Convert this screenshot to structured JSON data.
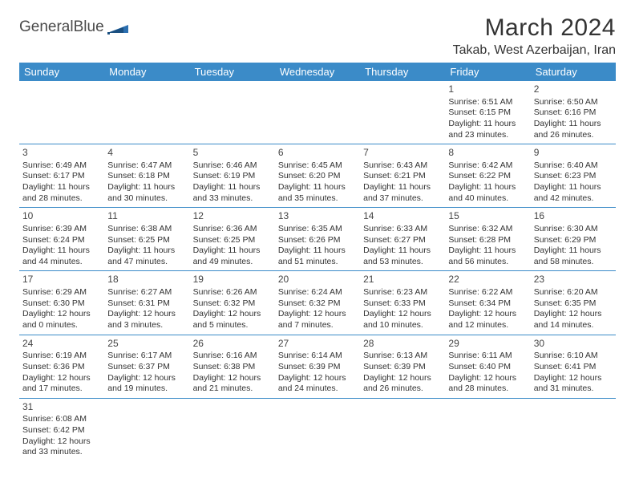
{
  "logo": {
    "text1": "General",
    "text2": "Blue"
  },
  "title": "March 2024",
  "location": "Takab, West Azerbaijan, Iran",
  "colors": {
    "header_bg": "#3b8bc8",
    "header_fg": "#ffffff",
    "rule": "#3b8bc8",
    "text": "#333333",
    "logo_gray": "#4a4a4a",
    "logo_blue": "#2b6fb0"
  },
  "weekdays": [
    "Sunday",
    "Monday",
    "Tuesday",
    "Wednesday",
    "Thursday",
    "Friday",
    "Saturday"
  ],
  "first_weekday_index": 5,
  "days": [
    {
      "n": 1,
      "sunrise": "6:51 AM",
      "sunset": "6:15 PM",
      "daylight": "11 hours and 23 minutes."
    },
    {
      "n": 2,
      "sunrise": "6:50 AM",
      "sunset": "6:16 PM",
      "daylight": "11 hours and 26 minutes."
    },
    {
      "n": 3,
      "sunrise": "6:49 AM",
      "sunset": "6:17 PM",
      "daylight": "11 hours and 28 minutes."
    },
    {
      "n": 4,
      "sunrise": "6:47 AM",
      "sunset": "6:18 PM",
      "daylight": "11 hours and 30 minutes."
    },
    {
      "n": 5,
      "sunrise": "6:46 AM",
      "sunset": "6:19 PM",
      "daylight": "11 hours and 33 minutes."
    },
    {
      "n": 6,
      "sunrise": "6:45 AM",
      "sunset": "6:20 PM",
      "daylight": "11 hours and 35 minutes."
    },
    {
      "n": 7,
      "sunrise": "6:43 AM",
      "sunset": "6:21 PM",
      "daylight": "11 hours and 37 minutes."
    },
    {
      "n": 8,
      "sunrise": "6:42 AM",
      "sunset": "6:22 PM",
      "daylight": "11 hours and 40 minutes."
    },
    {
      "n": 9,
      "sunrise": "6:40 AM",
      "sunset": "6:23 PM",
      "daylight": "11 hours and 42 minutes."
    },
    {
      "n": 10,
      "sunrise": "6:39 AM",
      "sunset": "6:24 PM",
      "daylight": "11 hours and 44 minutes."
    },
    {
      "n": 11,
      "sunrise": "6:38 AM",
      "sunset": "6:25 PM",
      "daylight": "11 hours and 47 minutes."
    },
    {
      "n": 12,
      "sunrise": "6:36 AM",
      "sunset": "6:25 PM",
      "daylight": "11 hours and 49 minutes."
    },
    {
      "n": 13,
      "sunrise": "6:35 AM",
      "sunset": "6:26 PM",
      "daylight": "11 hours and 51 minutes."
    },
    {
      "n": 14,
      "sunrise": "6:33 AM",
      "sunset": "6:27 PM",
      "daylight": "11 hours and 53 minutes."
    },
    {
      "n": 15,
      "sunrise": "6:32 AM",
      "sunset": "6:28 PM",
      "daylight": "11 hours and 56 minutes."
    },
    {
      "n": 16,
      "sunrise": "6:30 AM",
      "sunset": "6:29 PM",
      "daylight": "11 hours and 58 minutes."
    },
    {
      "n": 17,
      "sunrise": "6:29 AM",
      "sunset": "6:30 PM",
      "daylight": "12 hours and 0 minutes."
    },
    {
      "n": 18,
      "sunrise": "6:27 AM",
      "sunset": "6:31 PM",
      "daylight": "12 hours and 3 minutes."
    },
    {
      "n": 19,
      "sunrise": "6:26 AM",
      "sunset": "6:32 PM",
      "daylight": "12 hours and 5 minutes."
    },
    {
      "n": 20,
      "sunrise": "6:24 AM",
      "sunset": "6:32 PM",
      "daylight": "12 hours and 7 minutes."
    },
    {
      "n": 21,
      "sunrise": "6:23 AM",
      "sunset": "6:33 PM",
      "daylight": "12 hours and 10 minutes."
    },
    {
      "n": 22,
      "sunrise": "6:22 AM",
      "sunset": "6:34 PM",
      "daylight": "12 hours and 12 minutes."
    },
    {
      "n": 23,
      "sunrise": "6:20 AM",
      "sunset": "6:35 PM",
      "daylight": "12 hours and 14 minutes."
    },
    {
      "n": 24,
      "sunrise": "6:19 AM",
      "sunset": "6:36 PM",
      "daylight": "12 hours and 17 minutes."
    },
    {
      "n": 25,
      "sunrise": "6:17 AM",
      "sunset": "6:37 PM",
      "daylight": "12 hours and 19 minutes."
    },
    {
      "n": 26,
      "sunrise": "6:16 AM",
      "sunset": "6:38 PM",
      "daylight": "12 hours and 21 minutes."
    },
    {
      "n": 27,
      "sunrise": "6:14 AM",
      "sunset": "6:39 PM",
      "daylight": "12 hours and 24 minutes."
    },
    {
      "n": 28,
      "sunrise": "6:13 AM",
      "sunset": "6:39 PM",
      "daylight": "12 hours and 26 minutes."
    },
    {
      "n": 29,
      "sunrise": "6:11 AM",
      "sunset": "6:40 PM",
      "daylight": "12 hours and 28 minutes."
    },
    {
      "n": 30,
      "sunrise": "6:10 AM",
      "sunset": "6:41 PM",
      "daylight": "12 hours and 31 minutes."
    },
    {
      "n": 31,
      "sunrise": "6:08 AM",
      "sunset": "6:42 PM",
      "daylight": "12 hours and 33 minutes."
    }
  ],
  "labels": {
    "sunrise": "Sunrise:",
    "sunset": "Sunset:",
    "daylight": "Daylight:"
  }
}
